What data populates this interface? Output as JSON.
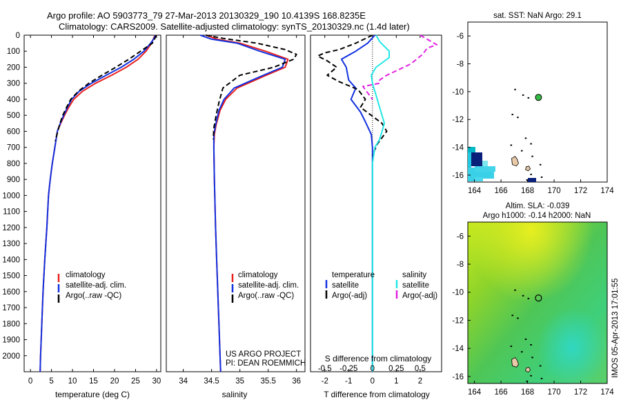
{
  "header": {
    "title_line1": "Argo profile: AO 5903773_79 27-Mar-2013 20130329_190 10.4139S 168.8235E",
    "title_line2": "Climatology: CARS2009. Satellite-adjusted climatology: synTS_20130329.nc (1.4d later)"
  },
  "colors": {
    "climatology": "#e8201e",
    "satellite": "#1030e0",
    "argo": "#000000",
    "satellite_salinity": "#22e6e6",
    "argo_salinity": "#e020e0",
    "land": "#e8c9a8"
  },
  "chart_data": [
    {
      "type": "line",
      "name": "temperature",
      "xlabel": "temperature (deg C)",
      "ylabel": "",
      "xlim": [
        -1.5,
        31
      ],
      "ylim": [
        2100,
        0
      ],
      "xticks": [
        0,
        5,
        10,
        15,
        20,
        25,
        30
      ],
      "yticks": [
        0,
        100,
        200,
        300,
        400,
        500,
        600,
        700,
        800,
        900,
        1000,
        1100,
        1200,
        1300,
        1400,
        1500,
        1600,
        1700,
        1800,
        1900,
        2000
      ],
      "legend": [
        "climatology",
        "satellite-adj. clim.",
        "Argo(..raw -QC)"
      ],
      "series": [
        {
          "name": "climatology",
          "style": "solid",
          "color": "#e8201e",
          "points": [
            [
              29.6,
              0
            ],
            [
              29.3,
              20
            ],
            [
              28.8,
              50
            ],
            [
              27.5,
              100
            ],
            [
              25.6,
              150
            ],
            [
              22.8,
              200
            ],
            [
              19.3,
              250
            ],
            [
              15.5,
              300
            ],
            [
              12.4,
              350
            ],
            [
              10.3,
              400
            ],
            [
              9.1,
              450
            ],
            [
              8.1,
              500
            ],
            [
              7.2,
              550
            ],
            [
              6.4,
              600
            ],
            [
              5.8,
              700
            ],
            [
              5.2,
              800
            ],
            [
              4.7,
              900
            ],
            [
              4.3,
              1000
            ],
            [
              3.9,
              1200
            ],
            [
              3.4,
              1400
            ],
            [
              3.0,
              1600
            ],
            [
              2.7,
              1800
            ],
            [
              2.4,
              2000
            ],
            [
              2.3,
              2100
            ]
          ]
        },
        {
          "name": "satellite-adj. clim.",
          "style": "solid",
          "color": "#1030e0",
          "points": [
            [
              29.7,
              0
            ],
            [
              29.4,
              20
            ],
            [
              28.6,
              50
            ],
            [
              27.0,
              100
            ],
            [
              24.6,
              150
            ],
            [
              21.6,
              200
            ],
            [
              18.0,
              250
            ],
            [
              14.5,
              300
            ],
            [
              11.6,
              350
            ],
            [
              9.8,
              400
            ],
            [
              8.8,
              450
            ],
            [
              7.9,
              500
            ],
            [
              7.1,
              550
            ],
            [
              6.4,
              600
            ],
            [
              5.8,
              700
            ],
            [
              5.2,
              800
            ],
            [
              4.7,
              900
            ],
            [
              4.3,
              1000
            ],
            [
              3.9,
              1200
            ],
            [
              3.4,
              1400
            ],
            [
              3.0,
              1600
            ],
            [
              2.7,
              1800
            ],
            [
              2.4,
              2000
            ],
            [
              2.3,
              2100
            ]
          ]
        },
        {
          "name": "Argo(..raw -QC)",
          "style": "dashed",
          "color": "#000000",
          "points": [
            [
              29.9,
              0
            ],
            [
              29.6,
              20
            ],
            [
              29.0,
              50
            ],
            [
              26.2,
              100
            ],
            [
              23.4,
              150
            ],
            [
              20.3,
              200
            ],
            [
              17.0,
              250
            ],
            [
              13.9,
              300
            ],
            [
              11.4,
              350
            ],
            [
              9.6,
              400
            ],
            [
              8.6,
              450
            ],
            [
              7.7,
              500
            ],
            [
              6.9,
              560
            ],
            [
              6.3,
              620
            ],
            [
              5.9,
              660
            ]
          ]
        }
      ]
    },
    {
      "type": "line",
      "name": "salinity",
      "xlabel": "salinity",
      "xlim": [
        33.7,
        36.15
      ],
      "ylim": [
        2100,
        0
      ],
      "xticks": [
        34,
        34.5,
        35,
        35.5,
        36
      ],
      "xtick_labels": [
        "34",
        "34.5",
        "35",
        "35.5",
        "36"
      ],
      "legend": [
        "climatology",
        "satellite-adj. clim.",
        "Argo(..raw -QC)"
      ],
      "annotations": [
        "US ARGO PROJECT",
        "PI: DEAN ROEMMICH"
      ],
      "series": [
        {
          "name": "climatology",
          "style": "solid",
          "color": "#e8201e",
          "points": [
            [
              34.4,
              0
            ],
            [
              34.6,
              25
            ],
            [
              35.0,
              50
            ],
            [
              35.45,
              100
            ],
            [
              35.85,
              150
            ],
            [
              35.8,
              200
            ],
            [
              35.4,
              260
            ],
            [
              34.95,
              330
            ],
            [
              34.75,
              400
            ],
            [
              34.65,
              470
            ],
            [
              34.58,
              560
            ],
            [
              34.55,
              620
            ],
            [
              34.54,
              700
            ],
            [
              34.55,
              900
            ],
            [
              34.57,
              1200
            ],
            [
              34.6,
              1500
            ],
            [
              34.63,
              1800
            ],
            [
              34.65,
              2000
            ],
            [
              34.66,
              2100
            ]
          ]
        },
        {
          "name": "satellite-adj. clim.",
          "style": "solid",
          "color": "#1030e0",
          "points": [
            [
              34.3,
              0
            ],
            [
              34.5,
              25
            ],
            [
              34.95,
              50
            ],
            [
              35.35,
              100
            ],
            [
              35.8,
              150
            ],
            [
              35.75,
              200
            ],
            [
              35.35,
              260
            ],
            [
              34.9,
              330
            ],
            [
              34.72,
              400
            ],
            [
              34.63,
              470
            ],
            [
              34.57,
              560
            ],
            [
              34.54,
              620
            ],
            [
              34.54,
              700
            ],
            [
              34.55,
              900
            ],
            [
              34.57,
              1200
            ],
            [
              34.6,
              1500
            ],
            [
              34.63,
              1800
            ],
            [
              34.65,
              2000
            ],
            [
              34.66,
              2100
            ]
          ]
        },
        {
          "name": "Argo(..raw -QC)",
          "style": "dashed",
          "color": "#000000",
          "points": [
            [
              34.4,
              0
            ],
            [
              34.7,
              20
            ],
            [
              35.3,
              50
            ],
            [
              35.8,
              90
            ],
            [
              36.0,
              120
            ],
            [
              35.95,
              150
            ],
            [
              35.6,
              200
            ],
            [
              35.0,
              250
            ],
            [
              34.7,
              330
            ],
            [
              34.63,
              420
            ],
            [
              34.58,
              500
            ],
            [
              34.54,
              580
            ],
            [
              34.53,
              650
            ]
          ]
        }
      ]
    },
    {
      "type": "line",
      "name": "difference",
      "xlabel": "T difference from climatology",
      "xlabel_top": "S difference from climatology",
      "xlim": [
        -2.6,
        2.9
      ],
      "ylim": [
        2100,
        0
      ],
      "xticks": [
        -2,
        -1,
        0,
        1,
        2
      ],
      "xticks_s": [
        -0.5,
        -0.25,
        0,
        0.25,
        0.5
      ],
      "xticks_s_labels": [
        "-0.5",
        "-0.25",
        "0",
        "0.25",
        "0.5"
      ],
      "legend_title_t": "temperature",
      "legend_title_s": "salinity",
      "legend": [
        "satellite",
        "Argo(-adj)",
        "satellite",
        "Argo(-adj)"
      ],
      "series": [
        {
          "name": "satellite T",
          "style": "solid",
          "color": "#1030e0",
          "points": [
            [
              0.1,
              0
            ],
            [
              -0.2,
              50
            ],
            [
              -0.7,
              100
            ],
            [
              -1.3,
              150
            ],
            [
              -1.1,
              200
            ],
            [
              -1.0,
              280
            ],
            [
              -0.7,
              330
            ],
            [
              -0.9,
              400
            ],
            [
              -0.5,
              480
            ],
            [
              -0.3,
              540
            ],
            [
              -0.05,
              620
            ],
            [
              0,
              700
            ],
            [
              0,
              2100
            ]
          ]
        },
        {
          "name": "Argo(-adj) T",
          "style": "dashed",
          "color": "#000000",
          "points": [
            [
              0,
              0
            ],
            [
              -0.7,
              50
            ],
            [
              -1.4,
              90
            ],
            [
              -2.0,
              110
            ],
            [
              -2.3,
              130
            ],
            [
              -1.9,
              160
            ],
            [
              -1.5,
              200
            ],
            [
              -1.9,
              250
            ],
            [
              -1.4,
              290
            ],
            [
              -0.6,
              340
            ],
            [
              -0.3,
              400
            ],
            [
              -0.5,
              450
            ],
            [
              0.4,
              550
            ],
            [
              0.6,
              600
            ],
            [
              0.2,
              680
            ],
            [
              0,
              750
            ]
          ]
        },
        {
          "name": "satellite S",
          "style": "solid",
          "color": "#22e6e6",
          "points": [
            [
              0.15,
              0
            ],
            [
              0.3,
              40
            ],
            [
              0.7,
              100
            ],
            [
              0.7,
              140
            ],
            [
              0.15,
              200
            ],
            [
              -0.05,
              250
            ],
            [
              0,
              300
            ],
            [
              0.3,
              450
            ],
            [
              0.5,
              550
            ],
            [
              0.3,
              650
            ],
            [
              0.1,
              700
            ],
            [
              0,
              800
            ],
            [
              0,
              2100
            ]
          ]
        },
        {
          "name": "Argo(-adj) S",
          "style": "dashed",
          "color": "#e020e0",
          "points": [
            [
              2.0,
              0
            ],
            [
              2.7,
              60
            ],
            [
              2.3,
              80
            ],
            [
              2.1,
              120
            ],
            [
              1.6,
              180
            ],
            [
              0.6,
              250
            ],
            [
              0.3,
              280
            ],
            [
              0.3,
              300
            ],
            [
              -0.4,
              320
            ],
            [
              -0.3,
              340
            ],
            [
              0,
              400
            ]
          ]
        }
      ]
    },
    {
      "type": "heatmap",
      "name": "sst_map",
      "title": "sat. SST: NaN Argo: 29.1",
      "xlim": [
        163.5,
        174
      ],
      "ylim": [
        -16.5,
        -5
      ],
      "xticks": [
        164,
        166,
        168,
        170,
        172,
        174
      ],
      "yticks": [
        -6,
        -8,
        -10,
        -12,
        -14,
        -16
      ],
      "argo_position": [
        168.8235,
        -10.4139
      ]
    },
    {
      "type": "heatmap",
      "name": "sla_map",
      "title_line1": "Altim. SLA: -0.039",
      "title_line2": "Argo h1000: -0.14 h2000: NaN",
      "xlim": [
        163.5,
        174
      ],
      "ylim": [
        -16.5,
        -5
      ],
      "xticks": [
        164,
        166,
        168,
        170,
        172,
        174
      ],
      "yticks": [
        -6,
        -8,
        -10,
        -12,
        -14,
        -16
      ],
      "argo_position": [
        168.8235,
        -10.4139
      ]
    }
  ],
  "footer": {
    "stamp": "IMOS 05-Apr-2013 17:01:55"
  }
}
